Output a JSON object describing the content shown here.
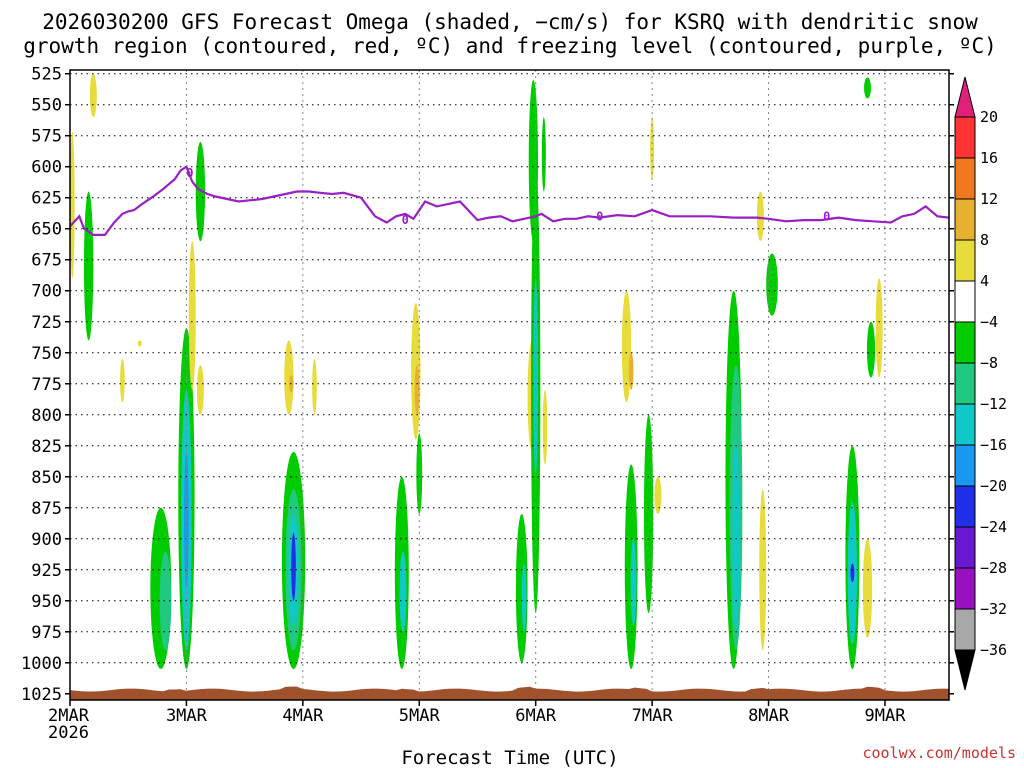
{
  "chart_data": {
    "type": "heatmap",
    "title_lines": [
      "2026030200 GFS Forecast Omega (shaded, −cm/s) for KSRQ with dendritic snow",
      "growth region (contoured, red, ºC) and freezing level (contoured, purple, ºC)"
    ],
    "xlabel": "Forecast Time (UTC)",
    "year_label": "2026",
    "credit": "coolwx.com/models",
    "x_day_range": [
      0,
      7.55
    ],
    "x_ticks": [
      {
        "day": 0,
        "label": "2MAR"
      },
      {
        "day": 1,
        "label": "3MAR"
      },
      {
        "day": 2,
        "label": "4MAR"
      },
      {
        "day": 3,
        "label": "5MAR"
      },
      {
        "day": 4,
        "label": "6MAR"
      },
      {
        "day": 5,
        "label": "7MAR"
      },
      {
        "day": 6,
        "label": "8MAR"
      },
      {
        "day": 7,
        "label": "9MAR"
      }
    ],
    "y_levels_hpa": [
      525,
      550,
      575,
      600,
      625,
      650,
      675,
      700,
      725,
      750,
      775,
      800,
      825,
      850,
      875,
      900,
      925,
      950,
      975,
      1000,
      1025
    ],
    "y_tick_labels": [
      "525",
      "550",
      "575",
      "600",
      "625",
      "650",
      "675",
      "700",
      "725",
      "750",
      "775",
      "800",
      "825",
      "850",
      "875",
      "900",
      "925",
      "950",
      "975",
      "1000",
      "1025"
    ],
    "colorbar": {
      "boundaries": [
        20,
        16,
        12,
        8,
        4,
        -4,
        -8,
        -12,
        -16,
        -20,
        -24,
        -28,
        -32,
        -36
      ],
      "labels": [
        "20",
        "16",
        "12",
        "8",
        "4",
        "−4",
        "−8",
        "−12",
        "−16",
        "−20",
        "−24",
        "−28",
        "−32",
        "−36"
      ],
      "bins": [
        {
          "range": "16 to 20",
          "color": "#ff3333"
        },
        {
          "range": "12 to 16",
          "color": "#f07820"
        },
        {
          "range": "8 to 12",
          "color": "#e8b030"
        },
        {
          "range": "4 to 8",
          "color": "#e8dc3c"
        },
        {
          "range": "-4 to 4",
          "color": "#ffffff"
        },
        {
          "range": "-8 to -4",
          "color": "#00cc00"
        },
        {
          "range": "-12 to -8",
          "color": "#20c880"
        },
        {
          "range": "-16 to -12",
          "color": "#10c8c8"
        },
        {
          "range": "-20 to -16",
          "color": "#1898f0"
        },
        {
          "range": "-24 to -20",
          "color": "#2030e8"
        },
        {
          "range": "-28 to -24",
          "color": "#6818d0"
        },
        {
          "range": "-32 to -28",
          "color": "#9810c0"
        },
        {
          "range": "-36 to -32",
          "color": "#a8a8a8"
        }
      ],
      "top_arrow_color": "#e0207a",
      "bottom_arrow_color": "#000000"
    },
    "freezing_level": {
      "color": "#9a1fc4",
      "contour_label": "0",
      "label_days": [
        0.02,
        0.03,
        1.02,
        1.03,
        2.9,
        3.5,
        4.55,
        5.5,
        6.5
      ],
      "label_hpa": [
        650,
        640,
        605,
        605,
        645,
        640,
        640,
        640,
        640
      ],
      "days": [
        0,
        0.08,
        0.12,
        0.2,
        0.3,
        0.38,
        0.45,
        0.5,
        0.55,
        0.62,
        0.7,
        0.8,
        0.9,
        0.95,
        1.0,
        1.05,
        1.1,
        1.18,
        1.25,
        1.35,
        1.45,
        1.55,
        1.65,
        1.75,
        1.85,
        1.95,
        2.05,
        2.15,
        2.25,
        2.35,
        2.5,
        2.62,
        2.72,
        2.8,
        2.88,
        2.95,
        3.05,
        3.15,
        3.25,
        3.35,
        3.5,
        3.6,
        3.7,
        3.8,
        3.9,
        4.0,
        4.05,
        4.15,
        4.25,
        4.35,
        4.45,
        4.55,
        4.7,
        4.85,
        5.0,
        5.15,
        5.3,
        5.5,
        5.7,
        5.9,
        6.0,
        6.15,
        6.3,
        6.45,
        6.6,
        6.75,
        6.9,
        7.05,
        7.15,
        7.25,
        7.35,
        7.45,
        7.55
      ],
      "hpa": [
        648,
        640,
        650,
        655,
        655,
        645,
        638,
        636,
        635,
        630,
        625,
        618,
        610,
        603,
        600,
        612,
        618,
        622,
        624,
        626,
        628,
        627,
        626,
        624,
        622,
        620,
        620,
        621,
        622,
        621,
        625,
        640,
        645,
        640,
        638,
        642,
        628,
        632,
        630,
        628,
        643,
        641,
        640,
        644,
        642,
        640,
        638,
        644,
        642,
        642,
        640,
        641,
        639,
        640,
        635,
        640,
        640,
        640,
        641,
        641,
        642,
        644,
        643,
        643,
        641,
        643,
        644,
        645,
        640,
        638,
        632,
        640,
        641
      ]
    },
    "omega_blobs": [
      {
        "day": 0.02,
        "p_top": 572,
        "p_bot": 690,
        "half_width_day": 0.02,
        "value": 6
      },
      {
        "day": 0.16,
        "p_top": 620,
        "p_bot": 740,
        "half_width_day": 0.04,
        "value": -6
      },
      {
        "day": 0.2,
        "p_top": 525,
        "p_bot": 560,
        "half_width_day": 0.03,
        "value": 6
      },
      {
        "day": 0.45,
        "p_top": 755,
        "p_bot": 790,
        "half_width_day": 0.02,
        "value": 6
      },
      {
        "day": 0.6,
        "p_top": 740,
        "p_bot": 745,
        "half_width_day": 0.005,
        "value": 6
      },
      {
        "day": 0.78,
        "p_top": 875,
        "p_bot": 1005,
        "half_width_day": 0.09,
        "value": -6
      },
      {
        "day": 0.82,
        "p_top": 910,
        "p_bot": 990,
        "half_width_day": 0.05,
        "value": -10
      },
      {
        "day": 1.0,
        "p_top": 730,
        "p_bot": 1005,
        "half_width_day": 0.07,
        "value": -6
      },
      {
        "day": 1.0,
        "p_top": 780,
        "p_bot": 990,
        "half_width_day": 0.045,
        "value": -14
      },
      {
        "day": 1.0,
        "p_top": 830,
        "p_bot": 940,
        "half_width_day": 0.02,
        "value": -18
      },
      {
        "day": 1.05,
        "p_top": 660,
        "p_bot": 780,
        "half_width_day": 0.03,
        "value": 6
      },
      {
        "day": 1.12,
        "p_top": 580,
        "p_bot": 660,
        "half_width_day": 0.04,
        "value": -6
      },
      {
        "day": 1.12,
        "p_top": 760,
        "p_bot": 800,
        "half_width_day": 0.03,
        "value": 6
      },
      {
        "day": 1.88,
        "p_top": 740,
        "p_bot": 800,
        "half_width_day": 0.04,
        "value": 6
      },
      {
        "day": 1.9,
        "p_top": 768,
        "p_bot": 782,
        "half_width_day": 0.02,
        "value": 10
      },
      {
        "day": 1.92,
        "p_top": 830,
        "p_bot": 1005,
        "half_width_day": 0.1,
        "value": -6
      },
      {
        "day": 1.92,
        "p_top": 860,
        "p_bot": 990,
        "half_width_day": 0.07,
        "value": -10
      },
      {
        "day": 1.92,
        "p_top": 880,
        "p_bot": 970,
        "half_width_day": 0.045,
        "value": -14
      },
      {
        "day": 1.92,
        "p_top": 895,
        "p_bot": 950,
        "half_width_day": 0.02,
        "value": -20
      },
      {
        "day": 2.1,
        "p_top": 755,
        "p_bot": 800,
        "half_width_day": 0.02,
        "value": 6
      },
      {
        "day": 2.85,
        "p_top": 850,
        "p_bot": 1005,
        "half_width_day": 0.06,
        "value": -6
      },
      {
        "day": 2.86,
        "p_top": 910,
        "p_bot": 975,
        "half_width_day": 0.03,
        "value": -12
      },
      {
        "day": 2.97,
        "p_top": 710,
        "p_bot": 820,
        "half_width_day": 0.04,
        "value": 6
      },
      {
        "day": 2.98,
        "p_top": 760,
        "p_bot": 800,
        "half_width_day": 0.02,
        "value": 10
      },
      {
        "day": 3.0,
        "p_top": 815,
        "p_bot": 880,
        "half_width_day": 0.025,
        "value": -6
      },
      {
        "day": 3.88,
        "p_top": 880,
        "p_bot": 1000,
        "half_width_day": 0.05,
        "value": -6
      },
      {
        "day": 3.9,
        "p_top": 920,
        "p_bot": 975,
        "half_width_day": 0.02,
        "value": -12
      },
      {
        "day": 3.97,
        "p_top": 740,
        "p_bot": 830,
        "half_width_day": 0.04,
        "value": 6
      },
      {
        "day": 3.98,
        "p_top": 530,
        "p_bot": 660,
        "half_width_day": 0.04,
        "value": -6
      },
      {
        "day": 4.0,
        "p_top": 600,
        "p_bot": 960,
        "half_width_day": 0.04,
        "value": -6
      },
      {
        "day": 4.0,
        "p_top": 690,
        "p_bot": 850,
        "half_width_day": 0.02,
        "value": -12
      },
      {
        "day": 4.07,
        "p_top": 560,
        "p_bot": 620,
        "half_width_day": 0.015,
        "value": -6
      },
      {
        "day": 4.08,
        "p_top": 780,
        "p_bot": 840,
        "half_width_day": 0.02,
        "value": 6
      },
      {
        "day": 4.78,
        "p_top": 700,
        "p_bot": 790,
        "half_width_day": 0.04,
        "value": 6
      },
      {
        "day": 4.82,
        "p_top": 750,
        "p_bot": 780,
        "half_width_day": 0.02,
        "value": 10
      },
      {
        "day": 4.82,
        "p_top": 840,
        "p_bot": 1005,
        "half_width_day": 0.055,
        "value": -6
      },
      {
        "day": 4.84,
        "p_top": 900,
        "p_bot": 970,
        "half_width_day": 0.025,
        "value": -12
      },
      {
        "day": 4.97,
        "p_top": 800,
        "p_bot": 960,
        "half_width_day": 0.04,
        "value": -6
      },
      {
        "day": 5.0,
        "p_top": 560,
        "p_bot": 610,
        "half_width_day": 0.015,
        "value": 6
      },
      {
        "day": 5.05,
        "p_top": 850,
        "p_bot": 880,
        "half_width_day": 0.03,
        "value": 6
      },
      {
        "day": 5.7,
        "p_top": 700,
        "p_bot": 1005,
        "half_width_day": 0.07,
        "value": -6
      },
      {
        "day": 5.72,
        "p_top": 760,
        "p_bot": 990,
        "half_width_day": 0.055,
        "value": -10
      },
      {
        "day": 5.72,
        "p_top": 820,
        "p_bot": 975,
        "half_width_day": 0.03,
        "value": -14
      },
      {
        "day": 5.93,
        "p_top": 620,
        "p_bot": 660,
        "half_width_day": 0.03,
        "value": 6
      },
      {
        "day": 5.95,
        "p_top": 860,
        "p_bot": 990,
        "half_width_day": 0.03,
        "value": 6
      },
      {
        "day": 6.03,
        "p_top": 670,
        "p_bot": 720,
        "half_width_day": 0.05,
        "value": -6
      },
      {
        "day": 6.72,
        "p_top": 825,
        "p_bot": 1005,
        "half_width_day": 0.06,
        "value": -6
      },
      {
        "day": 6.72,
        "p_top": 870,
        "p_bot": 985,
        "half_width_day": 0.04,
        "value": -14
      },
      {
        "day": 6.72,
        "p_top": 920,
        "p_bot": 935,
        "half_width_day": 0.015,
        "value": -22
      },
      {
        "day": 6.85,
        "p_top": 900,
        "p_bot": 980,
        "half_width_day": 0.04,
        "value": 6
      },
      {
        "day": 6.85,
        "p_top": 528,
        "p_bot": 545,
        "half_width_day": 0.03,
        "value": -6
      },
      {
        "day": 6.88,
        "p_top": 725,
        "p_bot": 770,
        "half_width_day": 0.035,
        "value": -6
      },
      {
        "day": 6.95,
        "p_top": 690,
        "p_bot": 770,
        "half_width_day": 0.03,
        "value": 6
      }
    ],
    "ground_color": "#a0522d"
  }
}
